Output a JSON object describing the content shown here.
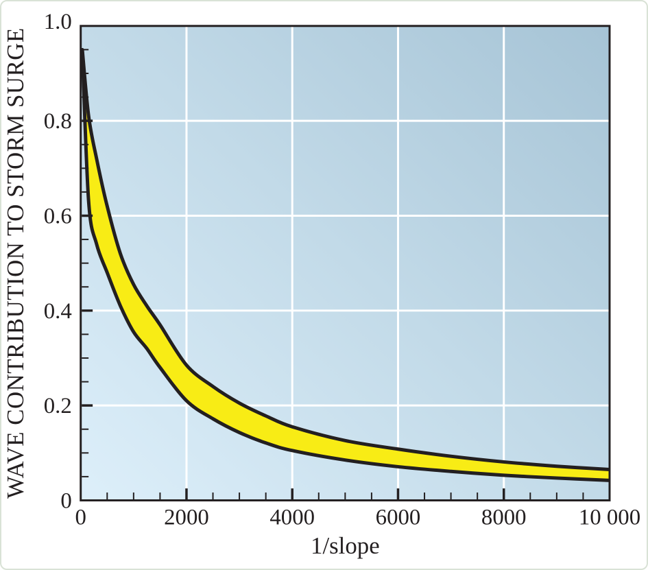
{
  "chart_data": {
    "type": "area",
    "title": "",
    "xlabel": "1/slope",
    "ylabel": "WAVE CONTRIBUTION TO STORM SURGE",
    "xlim": [
      0,
      10000
    ],
    "ylim": [
      0,
      1.0
    ],
    "x_major_ticks": [
      0,
      2000,
      4000,
      6000,
      8000,
      10000
    ],
    "x_tick_labels": [
      "0",
      "2000",
      "4000",
      "6000",
      "8000",
      "10 000"
    ],
    "x_minor_step": 500,
    "y_major_ticks": [
      0,
      0.2,
      0.4,
      0.6,
      0.8,
      1.0
    ],
    "y_tick_labels": [
      "0",
      "0.2",
      "0.4",
      "0.6",
      "0.8",
      "1.0"
    ],
    "y_minor_step": 0.05,
    "grid": "white lines at major ticks, band drawn above grid",
    "legend": "none",
    "band": {
      "description": "shaded envelope between upper and lower curves",
      "x": [
        30,
        150,
        300,
        500,
        750,
        1000,
        1250,
        1500,
        2000,
        2500,
        3000,
        3500,
        4000,
        5000,
        6000,
        7000,
        8000,
        9000,
        10000
      ],
      "upper": [
        0.95,
        0.81,
        0.72,
        0.62,
        0.52,
        0.455,
        0.41,
        0.37,
        0.285,
        0.24,
        0.205,
        0.178,
        0.155,
        0.126,
        0.108,
        0.093,
        0.081,
        0.072,
        0.065
      ],
      "lower": [
        0.95,
        0.63,
        0.54,
        0.48,
        0.41,
        0.355,
        0.32,
        0.28,
        0.21,
        0.172,
        0.143,
        0.121,
        0.105,
        0.085,
        0.071,
        0.061,
        0.053,
        0.047,
        0.042
      ]
    },
    "colors": {
      "band_fill": "#f8ec15",
      "curve_stroke": "#231f20",
      "grid_line": "#ffffff",
      "ink": "#231f20",
      "plot_bg_gradient": [
        "#ddeffa",
        "#c2dae8",
        "#9fbed1"
      ],
      "page_border": "#d9e2d6"
    }
  }
}
